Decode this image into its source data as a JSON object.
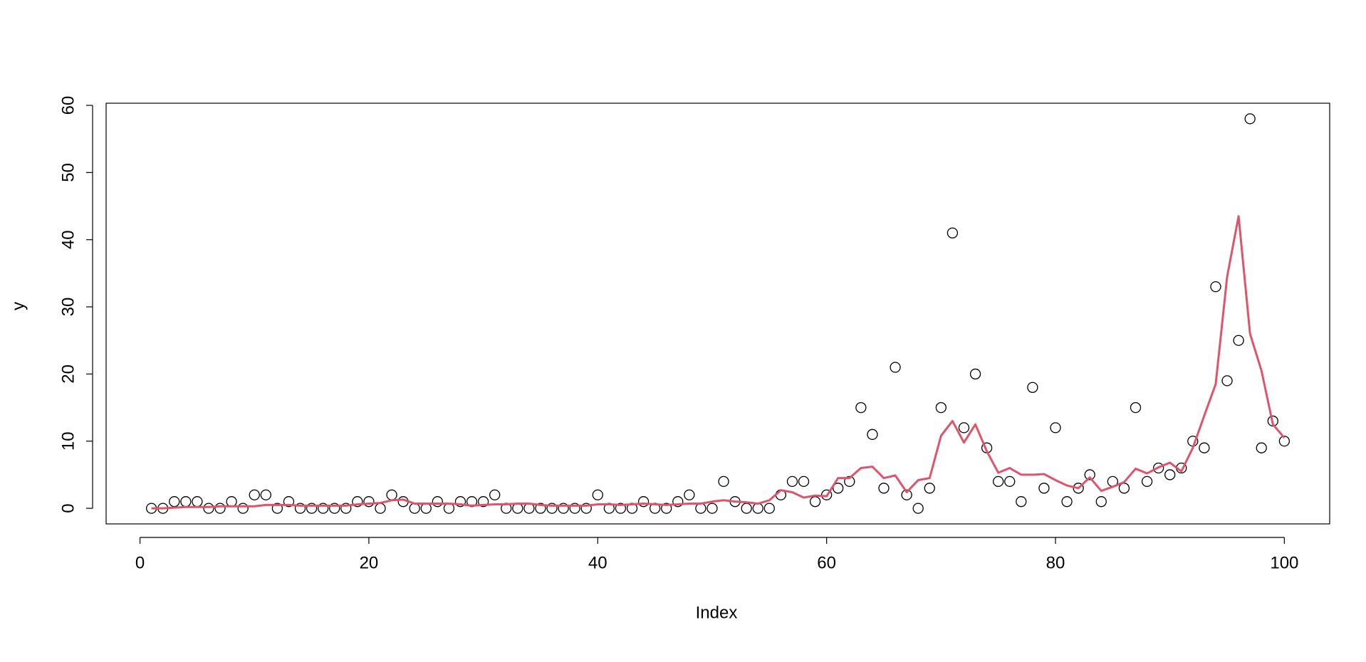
{
  "chart_data": {
    "type": "scatter",
    "x_label": "Index",
    "y_label": "y",
    "x": [
      1,
      2,
      3,
      4,
      5,
      6,
      7,
      8,
      9,
      10,
      11,
      12,
      13,
      14,
      15,
      16,
      17,
      18,
      19,
      20,
      21,
      22,
      23,
      24,
      25,
      26,
      27,
      28,
      29,
      30,
      31,
      32,
      33,
      34,
      35,
      36,
      37,
      38,
      39,
      40,
      41,
      42,
      43,
      44,
      45,
      46,
      47,
      48,
      49,
      50,
      51,
      52,
      53,
      54,
      55,
      56,
      57,
      58,
      59,
      60,
      61,
      62,
      63,
      64,
      65,
      66,
      67,
      68,
      69,
      70,
      71,
      72,
      73,
      74,
      75,
      76,
      77,
      78,
      79,
      80,
      81,
      82,
      83,
      84,
      85,
      86,
      87,
      88,
      89,
      90,
      91,
      92,
      93,
      94,
      95,
      96,
      97,
      98,
      99,
      100
    ],
    "series": [
      {
        "mark": "points",
        "color": "#000000",
        "values": [
          0,
          0,
          1,
          1,
          1,
          0,
          0,
          1,
          0,
          2,
          2,
          0,
          1,
          0,
          0,
          0,
          0,
          0,
          1,
          1,
          0,
          2,
          1,
          0,
          0,
          1,
          0,
          1,
          1,
          1,
          2,
          0,
          0,
          0,
          0,
          0,
          0,
          0,
          0,
          2,
          0,
          0,
          0,
          1,
          0,
          0,
          1,
          2,
          0,
          0,
          4,
          1,
          0,
          0,
          0,
          2,
          4,
          4,
          1,
          2,
          3,
          4,
          15,
          11,
          3,
          21,
          2,
          0,
          3,
          15,
          41,
          12,
          20,
          9,
          4,
          4,
          1,
          18,
          3,
          12,
          1,
          3,
          5,
          1,
          4,
          3,
          15,
          4,
          6,
          5,
          6,
          10,
          9,
          33,
          19,
          25,
          58,
          9,
          13,
          10
        ]
      },
      {
        "mark": "line",
        "color": "#df536b",
        "values": [
          0,
          0,
          0.1,
          0.2,
          0.2,
          0.2,
          0.3,
          0.3,
          0.3,
          0.3,
          0.5,
          0.5,
          0.5,
          0.4,
          0.4,
          0.4,
          0.4,
          0.4,
          0.6,
          0.7,
          0.8,
          1.2,
          1.3,
          0.7,
          0.7,
          0.7,
          0.7,
          0.6,
          0.4,
          0.5,
          0.6,
          0.6,
          0.7,
          0.7,
          0.5,
          0.4,
          0.4,
          0.4,
          0.4,
          0.6,
          0.6,
          0.5,
          0.6,
          0.7,
          0.6,
          0.5,
          0.6,
          0.7,
          0.7,
          1.0,
          1.2,
          1.0,
          0.9,
          0.7,
          1.2,
          2.7,
          2.4,
          1.6,
          1.9,
          1.8,
          4.5,
          4.5,
          6.0,
          6.2,
          4.5,
          4.9,
          2.4,
          4.2,
          4.5,
          10.8,
          13.0,
          9.8,
          12.5,
          8.5,
          5.3,
          6.0,
          5.0,
          5.0,
          5.1,
          4.2,
          3.4,
          3.0,
          4.6,
          2.6,
          3.2,
          3.9,
          5.9,
          5.2,
          6.1,
          6.8,
          5.5,
          9.0,
          13.8,
          18.5,
          34.5,
          43.5,
          26.0,
          20.5,
          12.5,
          10.5
        ]
      }
    ],
    "xlim": [
      -2.96,
      103.96
    ],
    "ylim": [
      -2.32,
      60.32
    ],
    "xticks": [
      0,
      20,
      40,
      60,
      80,
      100
    ],
    "yticks": [
      0,
      10,
      20,
      30,
      40,
      50,
      60
    ]
  }
}
